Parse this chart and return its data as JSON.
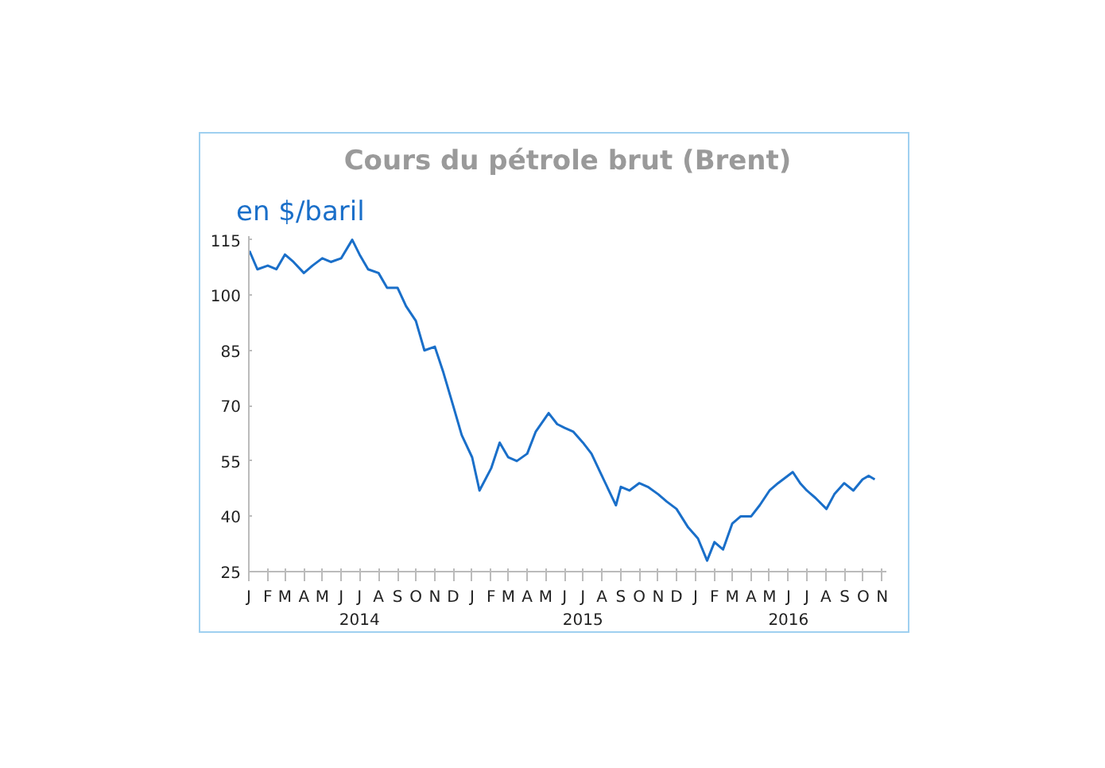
{
  "chart_data": {
    "type": "line",
    "title": "Cours du pétrole brut (Brent)",
    "ylabel": "en $/baril",
    "x": [
      "2014-01-02",
      "2014-01-15",
      "2014-02-01",
      "2014-02-15",
      "2014-03-01",
      "2014-03-15",
      "2014-04-01",
      "2014-04-15",
      "2014-05-01",
      "2014-05-15",
      "2014-06-01",
      "2014-06-19",
      "2014-07-01",
      "2014-07-15",
      "2014-08-01",
      "2014-08-15",
      "2014-09-01",
      "2014-09-15",
      "2014-10-01",
      "2014-10-15",
      "2014-11-01",
      "2014-11-15",
      "2014-12-01",
      "2014-12-15",
      "2015-01-01",
      "2015-01-13",
      "2015-02-01",
      "2015-02-15",
      "2015-03-01",
      "2015-03-15",
      "2015-04-01",
      "2015-04-15",
      "2015-05-06",
      "2015-05-20",
      "2015-06-01",
      "2015-06-15",
      "2015-07-01",
      "2015-07-15",
      "2015-08-01",
      "2015-08-24",
      "2015-09-01",
      "2015-09-15",
      "2015-10-01",
      "2015-10-15",
      "2015-11-01",
      "2015-11-15",
      "2015-12-01",
      "2015-12-20",
      "2016-01-05",
      "2016-01-20",
      "2016-02-01",
      "2016-02-15",
      "2016-03-01",
      "2016-03-15",
      "2016-04-01",
      "2016-04-15",
      "2016-05-01",
      "2016-05-15",
      "2016-06-08",
      "2016-06-20",
      "2016-07-01",
      "2016-07-15",
      "2016-08-02",
      "2016-08-15",
      "2016-08-31",
      "2016-09-15",
      "2016-09-30",
      "2016-10-10",
      "2016-10-20"
    ],
    "series": [
      {
        "color": "#1a6fc9",
        "values": [
          112,
          107,
          108,
          107,
          111,
          109,
          106,
          108,
          110,
          109,
          110,
          115,
          111,
          107,
          106,
          102,
          102,
          97,
          93,
          85,
          86,
          79,
          70,
          62,
          56,
          47,
          53,
          60,
          56,
          55,
          57,
          63,
          68,
          65,
          64,
          63,
          60,
          57,
          51,
          43,
          48,
          47,
          49,
          48,
          46,
          44,
          42,
          37,
          34,
          28,
          33,
          31,
          38,
          40,
          40,
          43,
          47,
          49,
          52,
          49,
          47,
          45,
          42,
          46,
          49,
          47,
          50,
          51,
          50
        ]
      }
    ],
    "ylim": [
      25,
      116
    ],
    "yticks": [
      25,
      40,
      55,
      70,
      85,
      100,
      115
    ],
    "xlim": [
      "2014-01-01",
      "2016-11-08"
    ],
    "xticks": [
      {
        "value": "2014-01-01",
        "label": "J"
      },
      {
        "value": "2014-02-01",
        "label": "F"
      },
      {
        "value": "2014-03-01",
        "label": "M"
      },
      {
        "value": "2014-04-01",
        "label": "A"
      },
      {
        "value": "2014-05-01",
        "label": "M"
      },
      {
        "value": "2014-06-01",
        "label": "J"
      },
      {
        "value": "2014-07-01",
        "label": "J\n2014"
      },
      {
        "value": "2014-08-01",
        "label": "A"
      },
      {
        "value": "2014-09-01",
        "label": "S"
      },
      {
        "value": "2014-10-01",
        "label": "O"
      },
      {
        "value": "2014-11-01",
        "label": "N"
      },
      {
        "value": "2014-12-01",
        "label": "D"
      },
      {
        "value": "2015-01-01",
        "label": "J"
      },
      {
        "value": "2015-02-01",
        "label": "F"
      },
      {
        "value": "2015-03-01",
        "label": "M"
      },
      {
        "value": "2015-04-01",
        "label": "A"
      },
      {
        "value": "2015-05-01",
        "label": "M"
      },
      {
        "value": "2015-06-01",
        "label": "J"
      },
      {
        "value": "2015-07-01",
        "label": "J\n2015"
      },
      {
        "value": "2015-08-01",
        "label": "A"
      },
      {
        "value": "2015-09-01",
        "label": "S"
      },
      {
        "value": "2015-10-01",
        "label": "O"
      },
      {
        "value": "2015-11-01",
        "label": "N"
      },
      {
        "value": "2015-12-01",
        "label": "D"
      },
      {
        "value": "2016-01-01",
        "label": "J"
      },
      {
        "value": "2016-02-01",
        "label": "F"
      },
      {
        "value": "2016-03-01",
        "label": "M"
      },
      {
        "value": "2016-04-01",
        "label": "A"
      },
      {
        "value": "2016-05-01",
        "label": "M"
      },
      {
        "value": "2016-06-01",
        "label": "J\n2016"
      },
      {
        "value": "2016-07-01",
        "label": "J"
      },
      {
        "value": "2016-08-01",
        "label": "A"
      },
      {
        "value": "2016-09-01",
        "label": "S"
      },
      {
        "value": "2016-10-01",
        "label": "O"
      },
      {
        "value": "2016-11-01",
        "label": "N"
      }
    ],
    "grid": false
  }
}
